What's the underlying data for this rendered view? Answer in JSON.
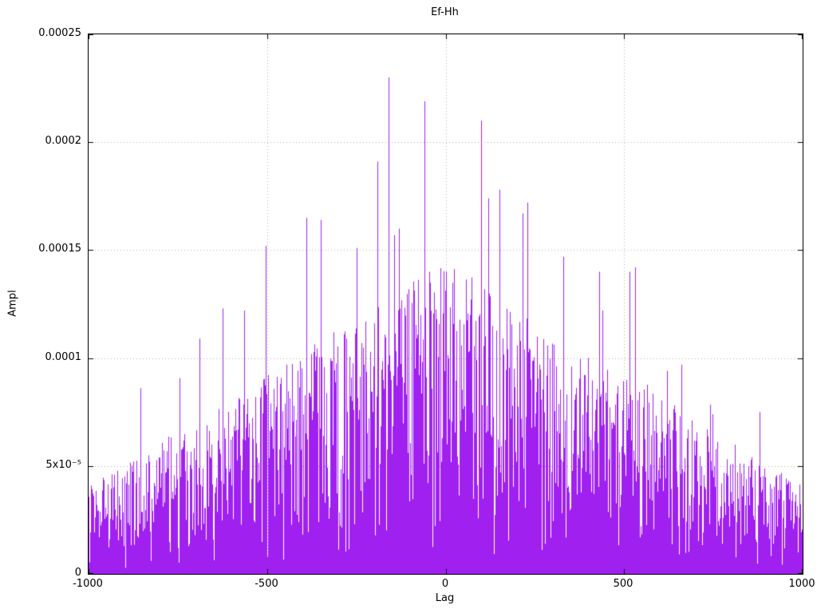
{
  "chart_data": {
    "type": "impulse",
    "title": "Ef-Hh",
    "xlabel": "Lag",
    "ylabel": "Ampl",
    "xlim": [
      -1000,
      1000
    ],
    "ylim": [
      0,
      0.00025
    ],
    "xticks": [
      -1000,
      -500,
      0,
      500,
      1000
    ],
    "yticks": [
      0,
      5e-05,
      0.0001,
      0.00015,
      0.0002,
      0.00025
    ],
    "xtick_labels": [
      "-1000",
      "-500",
      "0",
      "500",
      "1000"
    ],
    "ytick_labels": [
      "0",
      "5x10⁻⁵",
      "0.0001",
      "0.00015",
      "0.0002",
      "0.00025"
    ],
    "grid": true,
    "grid_color": "#b0b0b0",
    "line_color": "#a020f0",
    "step": 1,
    "seed": 1234,
    "envelope": {
      "peak": 0.000145,
      "slope": 0.72,
      "shape": 1.35,
      "floor": 0.05,
      "spike_prob": 0.012,
      "cap": 0.000185
    },
    "peaks": [
      {
        "x": -160,
        "y": 0.00023
      },
      {
        "x": -60,
        "y": 0.000219
      },
      {
        "x": 100,
        "y": 0.00021
      },
      {
        "x": -190,
        "y": 0.000191
      },
      {
        "x": 150,
        "y": 0.000178
      },
      {
        "x": 230,
        "y": 0.000172
      },
      {
        "x": 120,
        "y": 0.000174
      },
      {
        "x": -390,
        "y": 0.000165
      },
      {
        "x": -350,
        "y": 0.000164
      },
      {
        "x": -130,
        "y": 0.00016
      },
      {
        "x": -145,
        "y": 0.000157
      },
      {
        "x": -250,
        "y": 0.000151
      },
      {
        "x": -505,
        "y": 0.000152
      },
      {
        "x": 215,
        "y": 0.000167
      },
      {
        "x": 330,
        "y": 0.000147
      },
      {
        "x": 430,
        "y": 0.00014
      },
      {
        "x": 530,
        "y": 0.000142
      },
      {
        "x": 515,
        "y": 0.00014
      },
      {
        "x": -625,
        "y": 0.000123
      },
      {
        "x": -565,
        "y": 0.000122
      },
      {
        "x": -690,
        "y": 0.000109
      },
      {
        "x": 440,
        "y": 0.000122
      },
      {
        "x": 660,
        "y": 9.7e-05
      },
      {
        "x": 880,
        "y": 7.5e-05
      },
      {
        "x": -45,
        "y": 0.00014
      },
      {
        "x": 0,
        "y": 0.00014
      }
    ]
  }
}
